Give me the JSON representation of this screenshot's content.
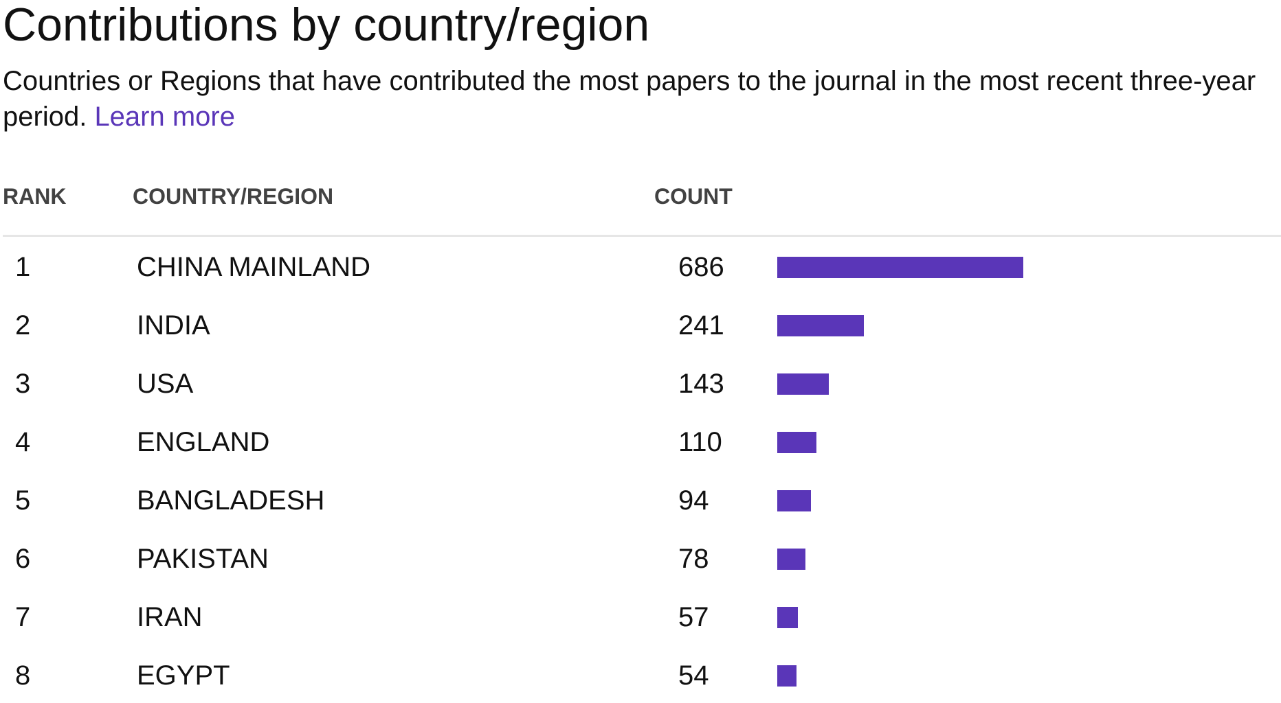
{
  "page": {
    "title": "Contributions by country/region",
    "subtitle": "Countries or Regions that have contributed the most papers to the journal in the most recent three-year period.",
    "learn_more": "Learn more"
  },
  "colors": {
    "accent": "#5a36b8",
    "text": "#111111",
    "header_text": "#424242",
    "divider": "#e6e6e6"
  },
  "table": {
    "headers": {
      "rank": "RANK",
      "country": "COUNTRY/REGION",
      "count": "COUNT"
    }
  },
  "chart_data": {
    "type": "bar",
    "orientation": "horizontal",
    "categories": [
      "CHINA MAINLAND",
      "INDIA",
      "USA",
      "ENGLAND",
      "BANGLADESH",
      "PAKISTAN",
      "IRAN",
      "EGYPT"
    ],
    "ranks": [
      "1",
      "2",
      "3",
      "4",
      "5",
      "6",
      "7",
      "8"
    ],
    "values": [
      686,
      241,
      143,
      110,
      94,
      78,
      57,
      54
    ],
    "title": "Contributions by country/region",
    "xlabel": "COUNT",
    "ylabel": "COUNTRY/REGION",
    "grid": false
  }
}
